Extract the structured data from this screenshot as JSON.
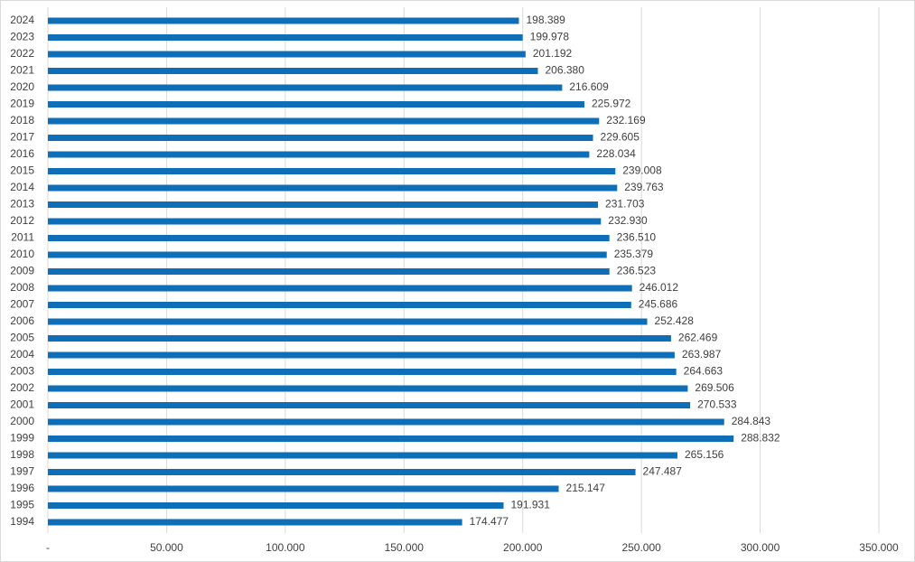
{
  "chart_data": {
    "type": "bar",
    "orientation": "horizontal",
    "color": "#0e6eb8",
    "grid": true,
    "categories": [
      "1994",
      "1995",
      "1996",
      "1997",
      "1998",
      "1999",
      "2000",
      "2001",
      "2002",
      "2003",
      "2004",
      "2005",
      "2006",
      "2007",
      "2008",
      "2009",
      "2010",
      "2011",
      "2012",
      "2013",
      "2014",
      "2015",
      "2016",
      "2017",
      "2018",
      "2019",
      "2020",
      "2021",
      "2022",
      "2023",
      "2024"
    ],
    "values": [
      174477,
      191931,
      215147,
      247487,
      265156,
      288832,
      284843,
      270533,
      269506,
      264663,
      263987,
      262469,
      252428,
      245686,
      246012,
      236523,
      235379,
      236510,
      232930,
      231703,
      239763,
      239008,
      228034,
      229605,
      232169,
      225972,
      216609,
      206380,
      201192,
      199978,
      198389
    ],
    "value_labels": [
      "174.477",
      "191.931",
      "215.147",
      "247.487",
      "265.156",
      "288.832",
      "284.843",
      "270.533",
      "269.506",
      "264.663",
      "263.987",
      "262.469",
      "252.428",
      "245.686",
      "246.012",
      "236.523",
      "235.379",
      "236.510",
      "232.930",
      "231.703",
      "239.763",
      "239.008",
      "228.034",
      "229.605",
      "232.169",
      "225.972",
      "216.609",
      "206.380",
      "201.192",
      "199.978",
      "198.389"
    ],
    "xlim": [
      0,
      350000
    ],
    "xticks": [
      {
        "value": 0,
        "label": "-"
      },
      {
        "value": 50000,
        "label": "50.000"
      },
      {
        "value": 100000,
        "label": "100.000"
      },
      {
        "value": 150000,
        "label": "150.000"
      },
      {
        "value": 200000,
        "label": "200.000"
      },
      {
        "value": 250000,
        "label": "250.000"
      },
      {
        "value": 300000,
        "label": "300.000"
      },
      {
        "value": 350000,
        "label": "350.000"
      }
    ]
  }
}
